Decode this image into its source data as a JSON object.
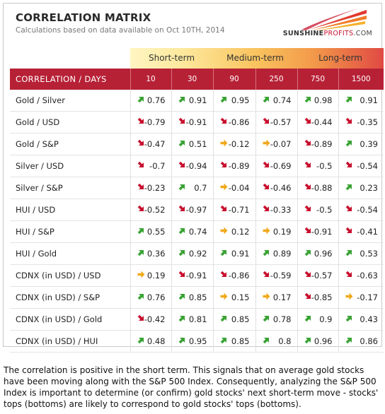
{
  "title": "CORRELATION MATRIX",
  "subtitle": "Calculations based on data available on Oct 10TH, 2014",
  "logo": {
    "name": "SUNSHINE",
    "name2": "PROFITS",
    "suffix": ".COM"
  },
  "colors": {
    "header": "#b72136",
    "up": "#3aa335",
    "down": "#c8102e",
    "neutral": "#f1a91b"
  },
  "chart_data": {
    "type": "table",
    "terms": [
      "Short-term",
      "Medium-term",
      "Long-term"
    ],
    "header_label": "CORRELATION / DAYS",
    "columns": [
      "10",
      "30",
      "90",
      "250",
      "750",
      "1500"
    ],
    "rows": [
      {
        "label": "Gold / Silver",
        "values": [
          "0.76",
          "0.91",
          "0.95",
          "0.74",
          "0.98",
          "0.91"
        ],
        "arrows": [
          "up",
          "up",
          "up",
          "up",
          "up",
          "up"
        ]
      },
      {
        "label": "Gold / USD",
        "values": [
          "-0.79",
          "-0.91",
          "-0.86",
          "-0.57",
          "-0.44",
          "-0.35"
        ],
        "arrows": [
          "down",
          "down",
          "down",
          "down",
          "down",
          "down"
        ]
      },
      {
        "label": "Gold / S&P",
        "values": [
          "-0.47",
          "0.51",
          "-0.12",
          "-0.07",
          "-0.89",
          "0.39"
        ],
        "arrows": [
          "down",
          "up",
          "neutral",
          "neutral",
          "down",
          "up"
        ]
      },
      {
        "label": "Silver / USD",
        "values": [
          "-0.7",
          "-0.94",
          "-0.89",
          "-0.69",
          "-0.5",
          "-0.54"
        ],
        "arrows": [
          "down",
          "down",
          "down",
          "down",
          "down",
          "down"
        ]
      },
      {
        "label": "Silver / S&P",
        "values": [
          "-0.23",
          "0.7",
          "-0.04",
          "-0.46",
          "-0.88",
          "0.23"
        ],
        "arrows": [
          "down",
          "up",
          "neutral",
          "down",
          "down",
          "up"
        ]
      },
      {
        "label": "HUI / USD",
        "values": [
          "-0.52",
          "-0.97",
          "-0.71",
          "-0.33",
          "-0.5",
          "-0.54"
        ],
        "arrows": [
          "down",
          "down",
          "down",
          "down",
          "down",
          "down"
        ]
      },
      {
        "label": "HUI / S&P",
        "values": [
          "0.55",
          "0.74",
          "0.12",
          "0.19",
          "-0.91",
          "-0.41"
        ],
        "arrows": [
          "up",
          "up",
          "neutral",
          "neutral",
          "down",
          "down"
        ]
      },
      {
        "label": "HUI / Gold",
        "values": [
          "0.36",
          "0.92",
          "0.91",
          "0.89",
          "0.96",
          "0.53"
        ],
        "arrows": [
          "up",
          "up",
          "up",
          "up",
          "up",
          "up"
        ]
      },
      {
        "label": "CDNX (in USD) / USD",
        "values": [
          "0.19",
          "-0.91",
          "-0.86",
          "-0.59",
          "-0.57",
          "-0.63"
        ],
        "arrows": [
          "neutral",
          "down",
          "down",
          "down",
          "down",
          "down"
        ]
      },
      {
        "label": "CDNX (in USD) / S&P",
        "values": [
          "0.76",
          "0.85",
          "0.15",
          "0.17",
          "-0.85",
          "-0.17"
        ],
        "arrows": [
          "up",
          "up",
          "neutral",
          "neutral",
          "down",
          "neutral"
        ]
      },
      {
        "label": "CDNX (in USD) / Gold",
        "values": [
          "-0.42",
          "0.81",
          "0.85",
          "0.78",
          "0.9",
          "0.43"
        ],
        "arrows": [
          "down",
          "up",
          "up",
          "up",
          "up",
          "up"
        ]
      },
      {
        "label": "CDNX (in USD) / HUI",
        "values": [
          "0.48",
          "0.95",
          "0.85",
          "0.8",
          "0.96",
          "0.86"
        ],
        "arrows": [
          "up",
          "up",
          "up",
          "up",
          "up",
          "up"
        ]
      }
    ]
  },
  "note": "The correlation is positive in the short term. This signals that on average gold stocks have been moving along with the S&P 500 Index. Consequently, analyzing the S&P 500 Index is important to determine (or confirm) gold stocks' next short-term move - stocks' tops (bottoms) are likely to correspond to gold stocks' tops (bottoms)."
}
